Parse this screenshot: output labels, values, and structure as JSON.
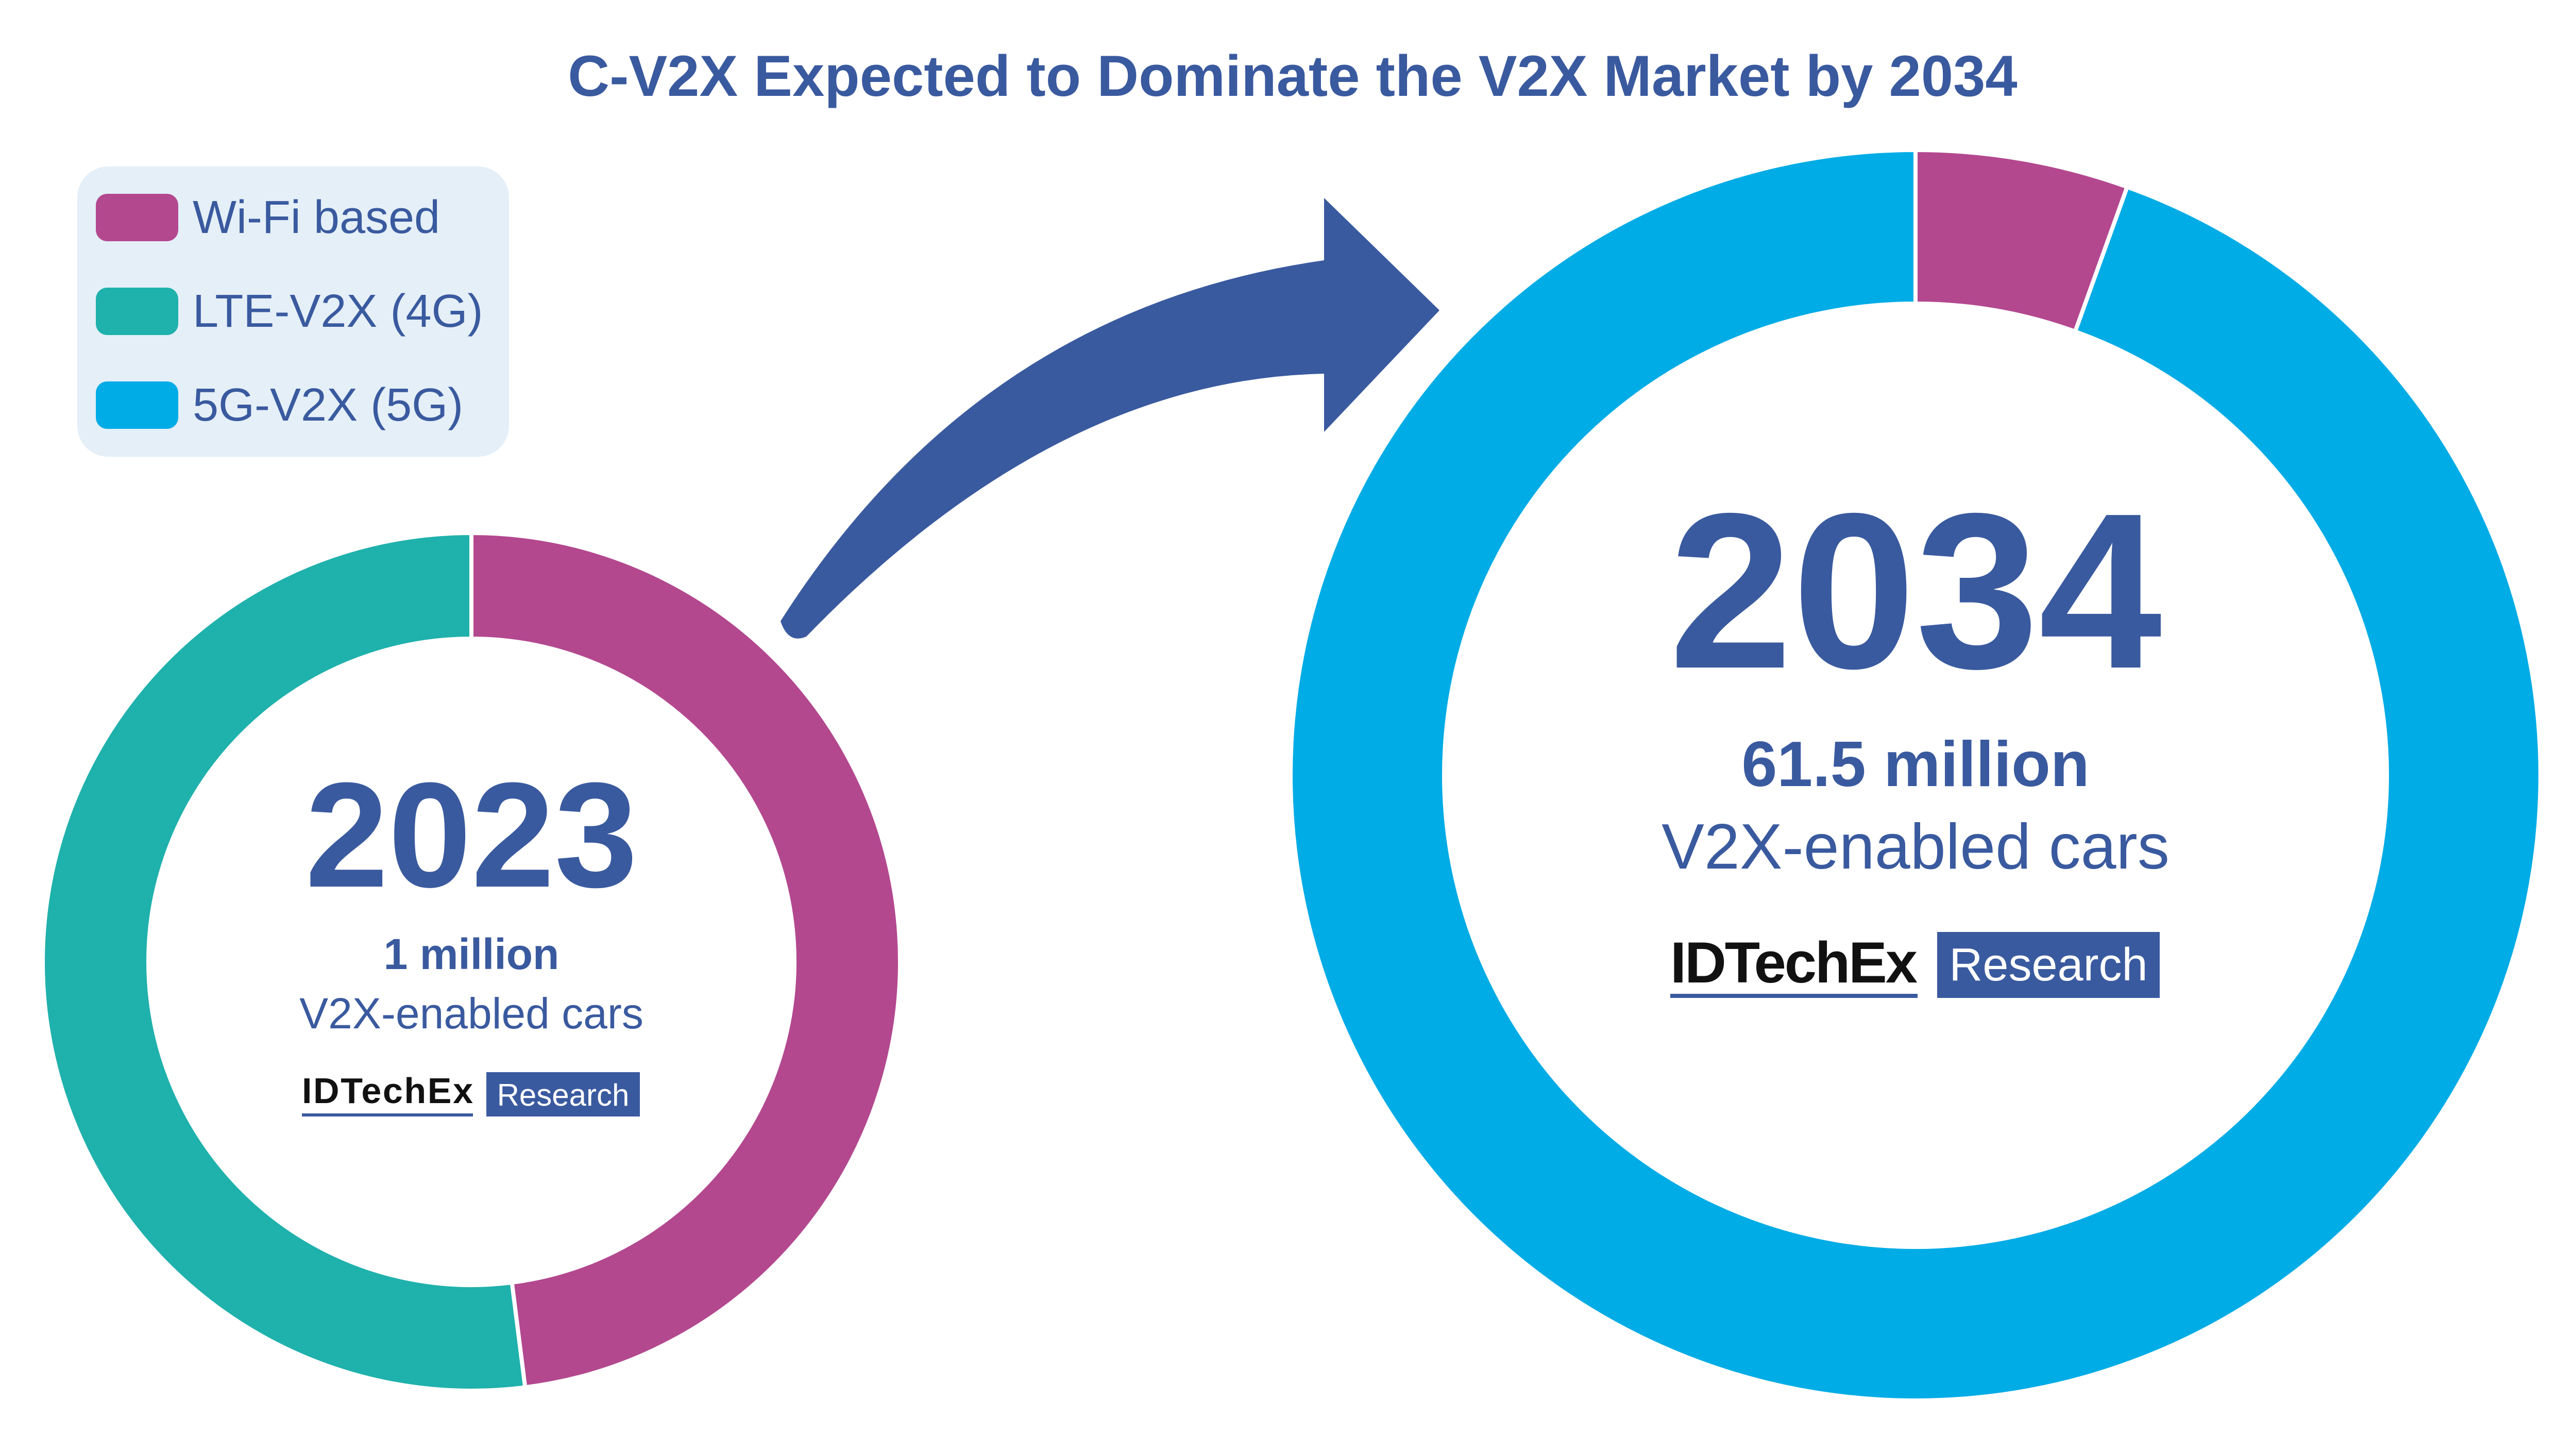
{
  "title": "C-V2X Expected to Dominate the V2X Market by 2034",
  "colors": {
    "text": "#3a5a9f",
    "wifi": "#b3488f",
    "lte": "#1fb1ac",
    "fiveg": "#00ace6",
    "legend_bg": "#e4eff8",
    "arrow": "#3a5a9f"
  },
  "legend": [
    {
      "label": "Wi-Fi based",
      "color": "#b3488f"
    },
    {
      "label": "LTE-V2X (4G)",
      "color": "#1fb1ac"
    },
    {
      "label": "5G-V2X (5G)",
      "color": "#00ace6"
    }
  ],
  "chart_data": [
    {
      "type": "pie",
      "donut": true,
      "center_label": "2023",
      "total_label": "1 million",
      "subtitle": "V2X-enabled cars",
      "slices": [
        {
          "name": "Wi-Fi based",
          "value": 48,
          "color": "#b3488f"
        },
        {
          "name": "LTE-V2X (4G)",
          "value": 52,
          "color": "#1fb1ac"
        }
      ]
    },
    {
      "type": "pie",
      "donut": true,
      "center_label": "2034",
      "total_label": "61.5 million",
      "subtitle": "V2X-enabled cars",
      "slices": [
        {
          "name": "Wi-Fi based",
          "value": 5.5,
          "color": "#b3488f"
        },
        {
          "name": "5G-V2X (5G)",
          "value": 94.5,
          "color": "#00ace6"
        }
      ]
    }
  ],
  "logo": {
    "brand": "IDTechEx",
    "tag": "Research"
  }
}
